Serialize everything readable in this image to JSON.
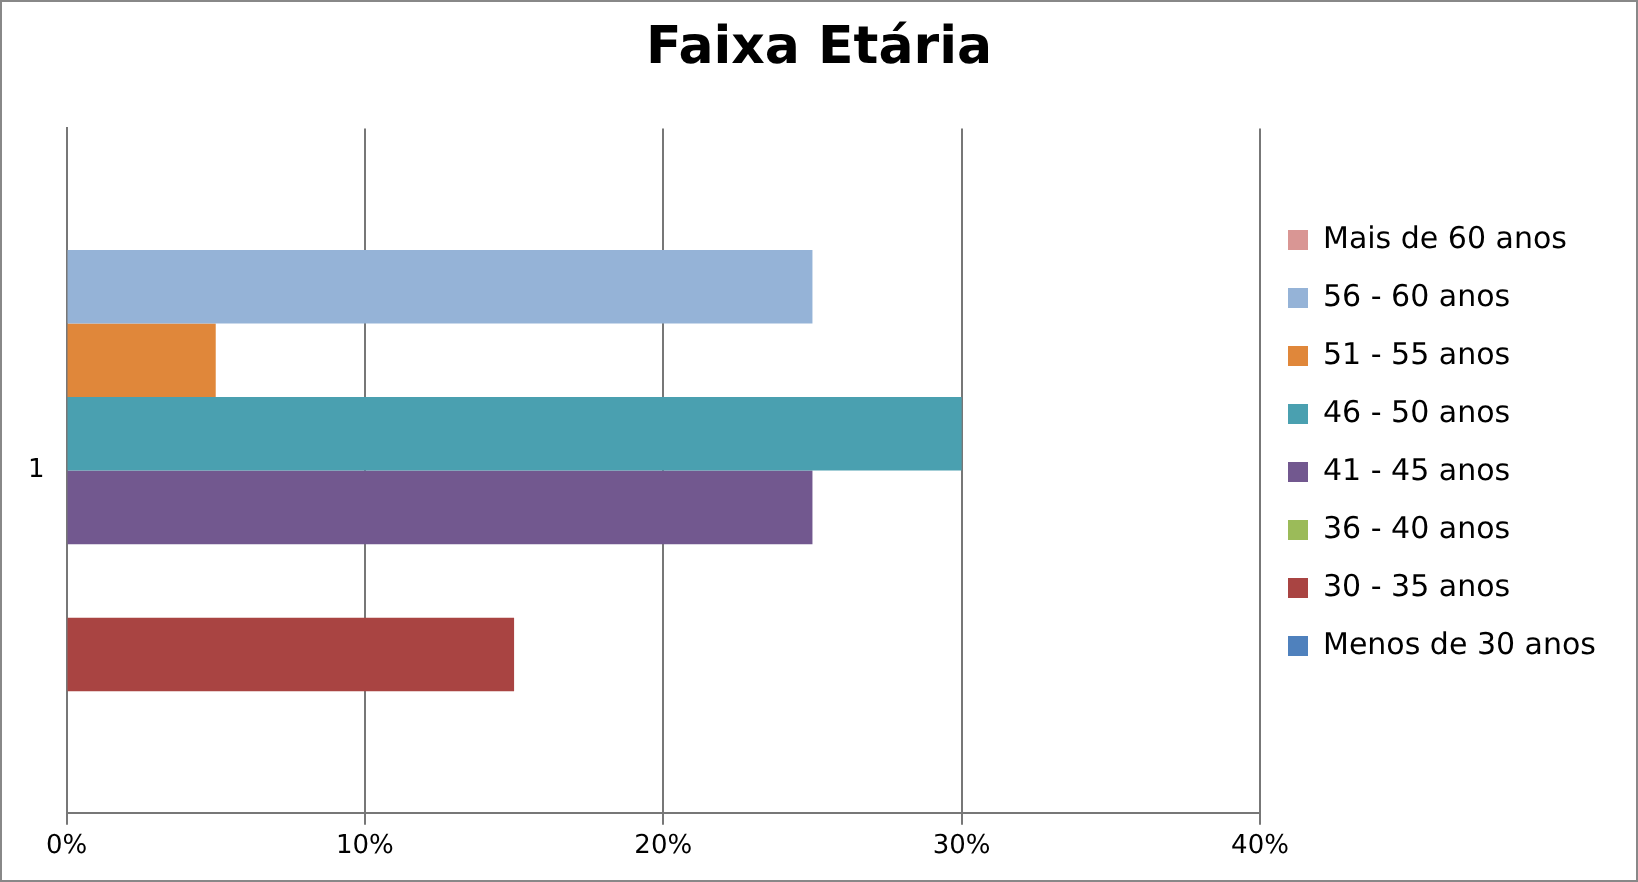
{
  "chart_data": {
    "type": "bar",
    "orientation": "horizontal",
    "title": "Faixa Etária",
    "categories": [
      "1"
    ],
    "series": [
      {
        "name": "Mais de 60 anos",
        "color": "#d99694",
        "values": [
          0
        ]
      },
      {
        "name": "56 - 60 anos",
        "color": "#95b3d7",
        "values": [
          25
        ]
      },
      {
        "name": "51 - 55 anos",
        "color": "#e0873a",
        "values": [
          5
        ]
      },
      {
        "name": "46 - 50 anos",
        "color": "#4aa0b0",
        "values": [
          30
        ]
      },
      {
        "name": "41 - 45 anos",
        "color": "#72588f",
        "values": [
          25
        ]
      },
      {
        "name": "36 - 40 anos",
        "color": "#9bbb59",
        "values": [
          0
        ]
      },
      {
        "name": "30 - 35 anos",
        "color": "#a94442",
        "values": [
          15
        ]
      },
      {
        "name": "Menos de 30 anos",
        "color": "#4f81bd",
        "values": [
          0
        ]
      }
    ],
    "xlim": [
      0,
      40
    ],
    "xticks": [
      {
        "value": 0,
        "label": "0%"
      },
      {
        "value": 10,
        "label": "10%"
      },
      {
        "value": 20,
        "label": "20%"
      },
      {
        "value": 30,
        "label": "30%"
      },
      {
        "value": 40,
        "label": "40%"
      }
    ],
    "grid": "x",
    "legend": "right"
  }
}
